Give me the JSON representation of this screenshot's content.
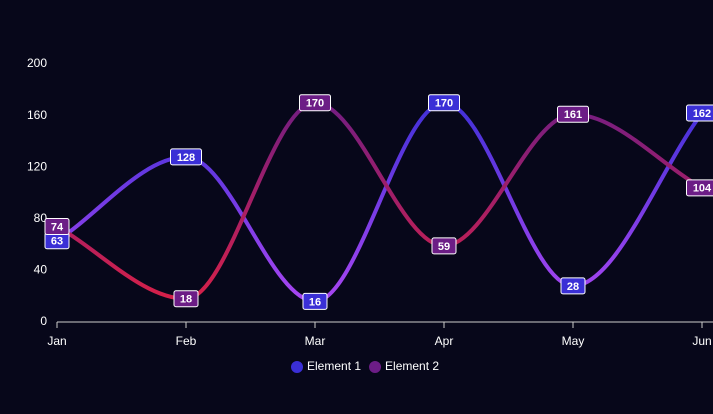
{
  "chart_data": {
    "type": "line",
    "categories": [
      "Jan",
      "Feb",
      "Mar",
      "Apr",
      "May",
      "Jun"
    ],
    "series": [
      {
        "name": "Element 1",
        "color": "#3a2fd6",
        "gradient": [
          "#3a2fd6",
          "#a545f0"
        ],
        "values": [
          63,
          128,
          16,
          170,
          28,
          162
        ]
      },
      {
        "name": "Element 2",
        "color": "#6c1d86",
        "gradient": [
          "#6c1d86",
          "#d4204a"
        ],
        "values": [
          74,
          18,
          170,
          59,
          161,
          104
        ]
      }
    ],
    "ylim": [
      0,
      200
    ],
    "yticks": [
      0,
      40,
      80,
      120,
      160,
      200
    ],
    "grid": false
  }
}
